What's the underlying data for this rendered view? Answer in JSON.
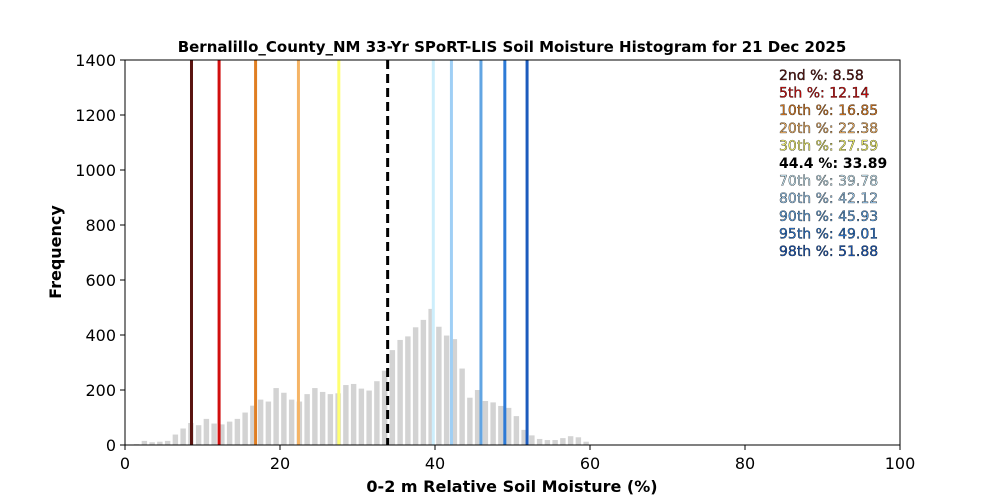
{
  "chart_data": {
    "type": "bar",
    "title": "Bernalillo_County_NM 33-Yr SPoRT-LIS Soil Moisture Histogram for 21 Dec 2025",
    "xlabel": "0-2 m Relative Soil Moisture (%)",
    "ylabel": "Frequency",
    "xlim": [
      0,
      100
    ],
    "ylim": [
      0,
      1400
    ],
    "xticks": [
      "0",
      "20",
      "40",
      "60",
      "80",
      "100"
    ],
    "yticks": [
      "0",
      "200",
      "400",
      "600",
      "800",
      "1000",
      "1200",
      "1400"
    ],
    "grid": false,
    "bar_color": "#d3d3d3",
    "bars": [
      {
        "x": 1.5,
        "y": 3
      },
      {
        "x": 2.5,
        "y": 15
      },
      {
        "x": 3.5,
        "y": 10
      },
      {
        "x": 4.5,
        "y": 12
      },
      {
        "x": 5.5,
        "y": 15
      },
      {
        "x": 6.5,
        "y": 38
      },
      {
        "x": 7.5,
        "y": 60
      },
      {
        "x": 8.5,
        "y": 80
      },
      {
        "x": 9.5,
        "y": 72
      },
      {
        "x": 10.5,
        "y": 95
      },
      {
        "x": 11.5,
        "y": 78
      },
      {
        "x": 12.5,
        "y": 75
      },
      {
        "x": 13.5,
        "y": 85
      },
      {
        "x": 14.5,
        "y": 95
      },
      {
        "x": 15.5,
        "y": 118
      },
      {
        "x": 16.5,
        "y": 143
      },
      {
        "x": 17.5,
        "y": 165
      },
      {
        "x": 18.5,
        "y": 158
      },
      {
        "x": 19.5,
        "y": 207
      },
      {
        "x": 20.5,
        "y": 190
      },
      {
        "x": 21.5,
        "y": 165
      },
      {
        "x": 22.5,
        "y": 158
      },
      {
        "x": 23.5,
        "y": 185
      },
      {
        "x": 24.5,
        "y": 207
      },
      {
        "x": 25.5,
        "y": 193
      },
      {
        "x": 26.5,
        "y": 185
      },
      {
        "x": 27.5,
        "y": 188
      },
      {
        "x": 28.5,
        "y": 218
      },
      {
        "x": 29.5,
        "y": 222
      },
      {
        "x": 30.5,
        "y": 205
      },
      {
        "x": 31.5,
        "y": 198
      },
      {
        "x": 32.5,
        "y": 232
      },
      {
        "x": 33.5,
        "y": 270
      },
      {
        "x": 34.5,
        "y": 345
      },
      {
        "x": 35.5,
        "y": 382
      },
      {
        "x": 36.5,
        "y": 395
      },
      {
        "x": 37.5,
        "y": 428
      },
      {
        "x": 38.5,
        "y": 455
      },
      {
        "x": 39.5,
        "y": 495
      },
      {
        "x": 40.5,
        "y": 430
      },
      {
        "x": 41.5,
        "y": 398
      },
      {
        "x": 42.5,
        "y": 385
      },
      {
        "x": 43.5,
        "y": 278
      },
      {
        "x": 44.5,
        "y": 172
      },
      {
        "x": 45.5,
        "y": 200
      },
      {
        "x": 46.5,
        "y": 160
      },
      {
        "x": 47.5,
        "y": 155
      },
      {
        "x": 48.5,
        "y": 142
      },
      {
        "x": 49.5,
        "y": 135
      },
      {
        "x": 50.5,
        "y": 105
      },
      {
        "x": 51.5,
        "y": 55
      },
      {
        "x": 52.5,
        "y": 35
      },
      {
        "x": 53.5,
        "y": 22
      },
      {
        "x": 54.5,
        "y": 18
      },
      {
        "x": 55.5,
        "y": 18
      },
      {
        "x": 56.5,
        "y": 25
      },
      {
        "x": 57.5,
        "y": 32
      },
      {
        "x": 58.5,
        "y": 28
      },
      {
        "x": 59.5,
        "y": 12
      }
    ],
    "percentile_lines": [
      {
        "label": "2nd %: 8.58",
        "value": 8.58,
        "color": "#5a1410",
        "dashed": false
      },
      {
        "label": "5th %: 12.14",
        "value": 12.14,
        "color": "#d10e0e",
        "dashed": false
      },
      {
        "label": "10th %: 16.85",
        "value": 16.85,
        "color": "#e07e22",
        "dashed": false
      },
      {
        "label": "20th %: 22.38",
        "value": 22.38,
        "color": "#f5b466",
        "dashed": false
      },
      {
        "label": "30th %: 27.59",
        "value": 27.59,
        "color": "#ffff70",
        "dashed": false
      },
      {
        "label": "44.4 %: 33.89",
        "value": 33.89,
        "color": "#000000",
        "dashed": true
      },
      {
        "label": "70th %: 39.78",
        "value": 39.78,
        "color": "#cdeefc",
        "dashed": false
      },
      {
        "label": "80th %: 42.12",
        "value": 42.12,
        "color": "#9fcff5",
        "dashed": false
      },
      {
        "label": "90th %: 45.93",
        "value": 45.93,
        "color": "#62a5e3",
        "dashed": false
      },
      {
        "label": "95th %: 49.01",
        "value": 49.01,
        "color": "#2d7ad6",
        "dashed": false
      },
      {
        "label": "98th %: 51.88",
        "value": 51.88,
        "color": "#1c5bbd",
        "dashed": false
      }
    ],
    "legend_position": "top-right"
  }
}
